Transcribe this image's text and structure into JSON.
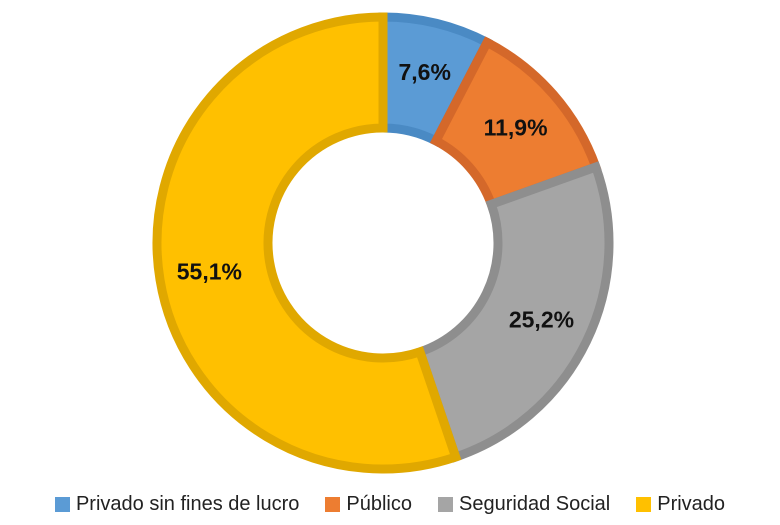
{
  "chart_data": {
    "type": "pie",
    "variant": "donut",
    "title": "",
    "categories": [
      "Privado sin fines de lucro",
      "Público",
      "Seguridad Social",
      "Privado"
    ],
    "values": [
      7.6,
      11.9,
      25.2,
      55.1
    ],
    "value_labels": [
      "7,6%",
      "11,9%",
      "25,2%",
      "55,1%"
    ],
    "unit": "%",
    "colors": [
      "#5B9BD5",
      "#ED7D31",
      "#A5A5A5",
      "#FFC000"
    ],
    "border_colors": [
      "#4A8AC4",
      "#D4682A",
      "#8E8E8E",
      "#E0A800"
    ],
    "start_angle_deg": 0,
    "direction": "clockwise",
    "legend_position": "bottom"
  }
}
